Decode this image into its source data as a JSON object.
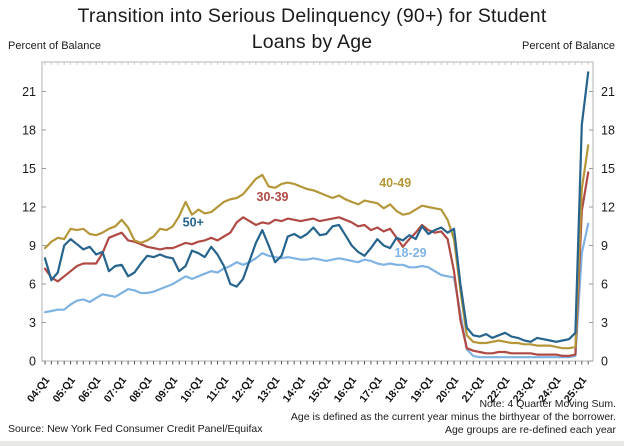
{
  "header": {
    "title": "Transition into Serious Delinquency (90+) for Student Loans by Age",
    "y_axis_caption_left": "Percent of Balance",
    "y_axis_caption_right": "Percent of Balance"
  },
  "footer": {
    "source": "Source: New York Fed Consumer Credit Panel/Equifax",
    "notes": [
      "Note: 4 Quarter Moving Sum.",
      "Age is defined as the current year minus the birthyear of the borrower.",
      "Age groups are re-defined each year"
    ]
  },
  "chart_data": {
    "type": "line",
    "title": "Transition into Serious Delinquency (90+) for Student Loans by Age",
    "ylabel_left": "Percent of Balance",
    "ylabel_right": "Percent of Balance",
    "ylim": [
      0,
      23.3
    ],
    "y_ticks": [
      0,
      3,
      6,
      9,
      12,
      15,
      18,
      21
    ],
    "grid": false,
    "legend_position": "inline-labels",
    "x_unit": "quarter",
    "n_points": 86,
    "x_range": [
      "2004:Q1",
      "2025:Q2"
    ],
    "x_tick_labels": [
      "04:Q1",
      "05:Q1",
      "06:Q1",
      "07:Q1",
      "08:Q1",
      "09:Q1",
      "10:Q1",
      "11:Q1",
      "12:Q1",
      "13:Q1",
      "14:Q1",
      "15:Q1",
      "16:Q1",
      "17:Q1",
      "18:Q1",
      "19:Q1",
      "20:Q1",
      "21:Q1",
      "22:Q1",
      "23:Q1",
      "24:Q1",
      "25:Q1"
    ],
    "quarters_per_x_tick": 4,
    "series": [
      {
        "name": "18-29",
        "color": "#7fb3e3",
        "label_pos": {
          "q": 57.2,
          "v": 8.1
        },
        "values": [
          3.8,
          3.9,
          4.0,
          4.0,
          4.4,
          4.7,
          4.8,
          4.6,
          4.9,
          5.2,
          5.1,
          5.0,
          5.3,
          5.6,
          5.5,
          5.3,
          5.3,
          5.4,
          5.6,
          5.8,
          6.0,
          6.3,
          6.6,
          6.4,
          6.6,
          6.8,
          7.0,
          6.9,
          7.2,
          7.4,
          7.7,
          7.5,
          7.7,
          8.0,
          8.4,
          8.2,
          8.1,
          8.0,
          8.1,
          8.0,
          7.9,
          7.9,
          8.0,
          7.9,
          7.8,
          7.9,
          8.0,
          7.9,
          7.8,
          7.7,
          7.9,
          7.8,
          7.6,
          7.5,
          7.6,
          7.5,
          7.5,
          7.3,
          7.3,
          7.4,
          7.3,
          7.0,
          6.7,
          6.6,
          6.5,
          3.7,
          0.9,
          0.4,
          0.3,
          0.3,
          0.3,
          0.3,
          0.3,
          0.3,
          0.3,
          0.3,
          0.3,
          0.3,
          0.3,
          0.3,
          0.3,
          0.3,
          0.3,
          0.4,
          8.4,
          10.7
        ]
      },
      {
        "name": "30-39",
        "color": "#b04a45",
        "label_pos": {
          "q": 35.6,
          "v": 12.45
        },
        "values": [
          7.2,
          6.5,
          6.2,
          6.6,
          7.0,
          7.4,
          7.6,
          7.6,
          7.6,
          8.4,
          9.6,
          9.8,
          10.0,
          9.4,
          9.3,
          9.1,
          8.9,
          8.8,
          8.7,
          8.8,
          8.8,
          9.0,
          9.2,
          9.1,
          9.3,
          9.4,
          9.6,
          9.4,
          9.7,
          10.0,
          10.8,
          11.2,
          10.9,
          10.6,
          10.8,
          10.7,
          11.0,
          10.9,
          11.1,
          11.0,
          10.9,
          11.0,
          11.1,
          10.9,
          11.0,
          11.1,
          11.2,
          11.0,
          10.8,
          10.5,
          10.6,
          10.2,
          10.4,
          10.1,
          10.3,
          9.6,
          8.9,
          9.5,
          10.0,
          10.6,
          10.2,
          10.0,
          10.1,
          9.5,
          7.0,
          3.2,
          1.0,
          0.8,
          0.7,
          0.6,
          0.6,
          0.7,
          0.7,
          0.6,
          0.6,
          0.6,
          0.6,
          0.5,
          0.5,
          0.5,
          0.5,
          0.4,
          0.4,
          0.5,
          11.7,
          14.7
        ]
      },
      {
        "name": "40-49",
        "color": "#b5973a",
        "label_pos": {
          "q": 54.8,
          "v": 13.55
        },
        "values": [
          8.8,
          9.3,
          9.6,
          9.5,
          10.3,
          10.2,
          10.3,
          9.9,
          9.8,
          10.0,
          10.3,
          10.5,
          11.0,
          10.4,
          9.4,
          9.2,
          9.4,
          9.7,
          10.3,
          10.2,
          10.5,
          11.3,
          12.4,
          11.4,
          11.8,
          11.5,
          11.6,
          12.0,
          12.4,
          12.6,
          12.7,
          13.0,
          13.6,
          14.2,
          14.5,
          13.6,
          13.5,
          13.8,
          13.9,
          13.8,
          13.6,
          13.4,
          13.3,
          13.1,
          12.9,
          12.7,
          12.9,
          12.6,
          12.4,
          12.2,
          12.5,
          12.4,
          12.3,
          11.9,
          12.2,
          11.7,
          11.4,
          11.5,
          11.8,
          12.1,
          12.0,
          11.9,
          11.8,
          11.0,
          9.5,
          5.5,
          2.0,
          1.5,
          1.4,
          1.4,
          1.5,
          1.6,
          1.5,
          1.4,
          1.4,
          1.3,
          1.3,
          1.2,
          1.2,
          1.2,
          1.1,
          1.0,
          1.0,
          1.1,
          13.4,
          16.8
        ]
      },
      {
        "name": "50+",
        "color": "#26648e",
        "label_pos": {
          "q": 23.2,
          "v": 10.5
        },
        "values": [
          8.0,
          6.3,
          6.9,
          9.0,
          9.5,
          9.1,
          8.7,
          8.9,
          8.3,
          8.5,
          7.0,
          7.4,
          7.5,
          6.6,
          6.9,
          7.6,
          8.2,
          8.1,
          8.3,
          8.1,
          8.0,
          7.0,
          7.4,
          8.6,
          8.4,
          8.1,
          8.9,
          8.3,
          7.4,
          6.0,
          5.8,
          6.4,
          7.8,
          9.2,
          10.2,
          9.0,
          7.7,
          8.2,
          9.7,
          9.9,
          9.6,
          9.9,
          10.4,
          9.8,
          9.9,
          10.5,
          10.6,
          9.8,
          9.0,
          8.5,
          8.2,
          8.8,
          9.5,
          9.0,
          8.8,
          9.6,
          9.4,
          9.8,
          9.5,
          10.5,
          9.9,
          10.2,
          10.4,
          10.0,
          10.3,
          6.0,
          2.6,
          2.0,
          1.9,
          2.1,
          1.8,
          2.0,
          2.2,
          1.9,
          1.8,
          1.6,
          1.5,
          1.8,
          1.7,
          1.6,
          1.5,
          1.6,
          1.7,
          2.2,
          18.4,
          22.5
        ]
      }
    ],
    "notes": [
      "Note: 4 Quarter Moving Sum.",
      "Age is defined as the current year minus the birthyear of the borrower.",
      "Age groups are re-defined each year"
    ],
    "source": "Source: New York Fed Consumer Credit Panel/Equifax",
    "frame_color": "#b3b3b3"
  }
}
